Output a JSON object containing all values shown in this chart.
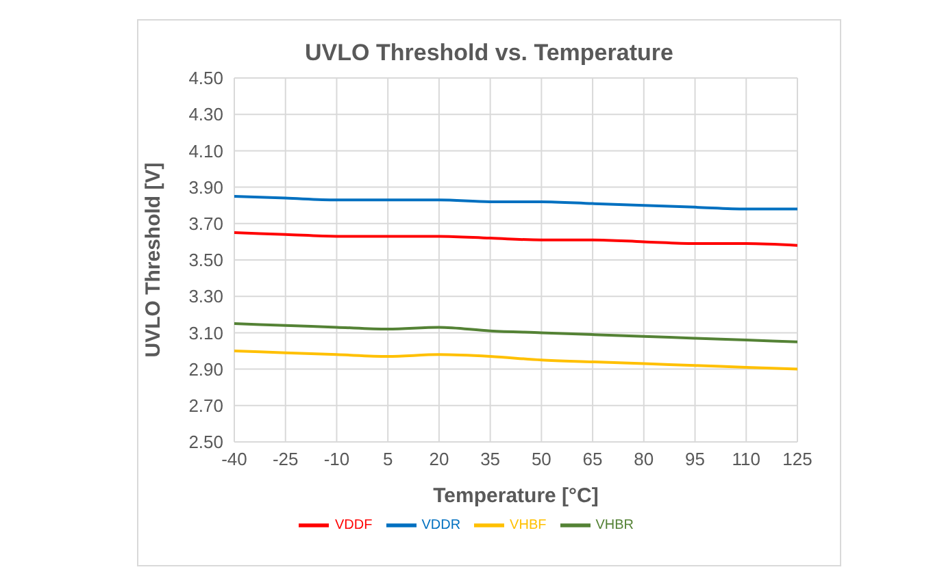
{
  "chart_data": {
    "type": "line",
    "title": "UVLO Threshold vs. Temperature",
    "xlabel": "Temperature [°C]",
    "ylabel": "UVLO Threshold [V]",
    "x": [
      -40,
      -25,
      -10,
      5,
      20,
      35,
      50,
      65,
      80,
      95,
      110,
      125
    ],
    "series": [
      {
        "name": "VDDR",
        "color": "#0070c0",
        "values": [
          3.85,
          3.84,
          3.83,
          3.83,
          3.83,
          3.82,
          3.82,
          3.81,
          3.8,
          3.79,
          3.78,
          3.78
        ]
      },
      {
        "name": "VDDF",
        "color": "#ff0000",
        "values": [
          3.65,
          3.64,
          3.63,
          3.63,
          3.63,
          3.62,
          3.61,
          3.61,
          3.6,
          3.59,
          3.59,
          3.58
        ]
      },
      {
        "name": "VHBR",
        "color": "#548235",
        "values": [
          3.15,
          3.14,
          3.13,
          3.12,
          3.13,
          3.11,
          3.1,
          3.09,
          3.08,
          3.07,
          3.06,
          3.05
        ]
      },
      {
        "name": "VHBF",
        "color": "#ffc000",
        "values": [
          3.0,
          2.99,
          2.98,
          2.97,
          2.98,
          2.97,
          2.95,
          2.94,
          2.93,
          2.92,
          2.91,
          2.9
        ]
      }
    ],
    "xlim": [
      -40,
      125
    ],
    "xticks": [
      -40,
      -25,
      -10,
      5,
      20,
      35,
      50,
      65,
      80,
      95,
      110,
      125
    ],
    "ylim": [
      2.5,
      4.5
    ],
    "yticks": [
      {
        "value": 2.5,
        "label": "2.50"
      },
      {
        "value": 2.7,
        "label": "2.70"
      },
      {
        "value": 2.9,
        "label": "2.90"
      },
      {
        "value": 3.1,
        "label": "3.10"
      },
      {
        "value": 3.3,
        "label": "3.30"
      },
      {
        "value": 3.5,
        "label": "3.50"
      },
      {
        "value": 3.7,
        "label": "3.70"
      },
      {
        "value": 3.9,
        "label": "3.90"
      },
      {
        "value": 4.1,
        "label": "4.10"
      },
      {
        "value": 4.3,
        "label": "4.30"
      },
      {
        "value": 4.5,
        "label": "4.50"
      }
    ],
    "grid": true,
    "legend": "bottom",
    "marker": "none",
    "line_style": "solid"
  }
}
